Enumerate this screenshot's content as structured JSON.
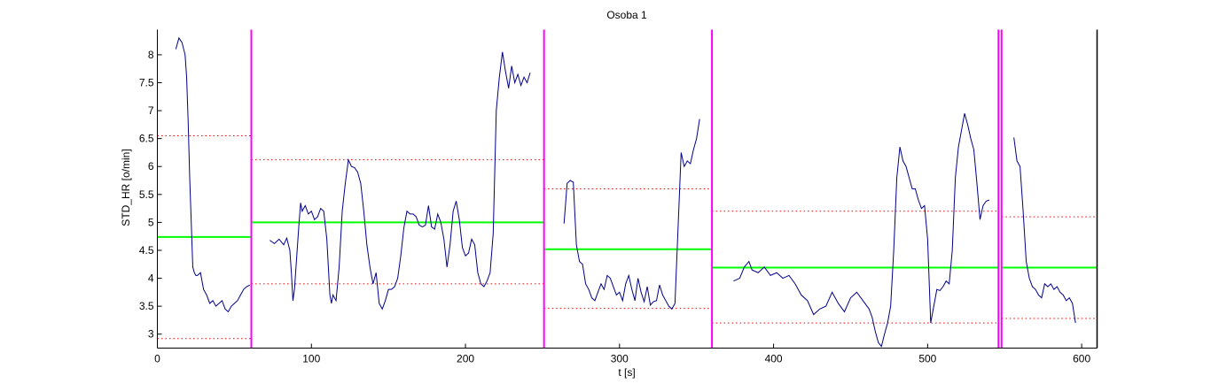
{
  "chart_data": {
    "type": "line",
    "title": "Osoba 1",
    "xlabel": "t [s]",
    "ylabel": "STD_HR [o/min]",
    "xlim": [
      0,
      610
    ],
    "ylim": [
      2.75,
      8.45
    ],
    "xticks": [
      0,
      100,
      200,
      300,
      400,
      500,
      600
    ],
    "yticks": [
      3,
      3.5,
      4,
      4.5,
      5,
      5.5,
      6,
      6.5,
      7,
      7.5,
      8
    ],
    "grid": false,
    "legend": "none",
    "colors": {
      "signal": "#00008b",
      "mean": "#00ff00",
      "bound": "#ff0000",
      "segment_boundary": "#ff00ff",
      "axes": "#000000"
    },
    "segment_boundaries": [
      61,
      251,
      360,
      546,
      548
    ],
    "segments": [
      {
        "x_start": 0,
        "x_end": 61,
        "mean": 4.74,
        "upper": 6.55,
        "lower": 2.92
      },
      {
        "x_start": 61,
        "x_end": 251,
        "mean": 5.0,
        "upper": 6.12,
        "lower": 3.9
      },
      {
        "x_start": 251,
        "x_end": 360,
        "mean": 4.52,
        "upper": 5.6,
        "lower": 3.46
      },
      {
        "x_start": 360,
        "x_end": 546,
        "mean": 4.19,
        "upper": 5.2,
        "lower": 3.2
      },
      {
        "x_start": 548,
        "x_end": 610,
        "mean": 4.19,
        "upper": 5.1,
        "lower": 3.28
      }
    ],
    "series": [
      {
        "x": [
          12,
          14,
          16,
          18,
          19,
          20,
          21,
          22,
          23,
          24,
          25,
          26,
          28,
          30,
          32,
          34,
          36,
          38,
          40,
          42,
          44,
          46,
          48,
          50,
          52,
          54,
          56,
          58,
          60
        ],
        "values": [
          8.1,
          8.3,
          8.22,
          8.0,
          7.6,
          6.8,
          5.8,
          5.0,
          4.2,
          4.1,
          4.05,
          4.05,
          4.1,
          3.8,
          3.7,
          3.55,
          3.6,
          3.5,
          3.55,
          3.6,
          3.45,
          3.4,
          3.5,
          3.55,
          3.6,
          3.7,
          3.8,
          3.85,
          3.88
        ]
      },
      {
        "x": [
          73,
          76,
          79,
          82,
          84,
          86,
          87,
          88,
          89,
          90,
          91,
          92,
          93,
          94,
          96,
          98,
          100,
          102,
          104,
          106,
          108,
          110,
          111,
          112,
          113,
          114,
          116,
          118,
          120,
          122,
          124,
          126,
          128,
          130,
          132,
          134,
          136,
          138,
          140,
          142,
          144,
          146,
          148,
          150,
          152,
          154,
          156,
          158,
          160,
          162,
          164,
          166,
          168,
          170,
          172,
          174,
          176,
          178,
          180,
          182,
          184,
          186,
          188,
          190,
          192,
          194,
          196,
          198,
          200,
          202,
          204,
          206,
          208,
          210,
          212,
          214,
          216,
          218,
          220,
          222,
          224,
          226,
          228,
          230,
          232,
          234,
          236,
          238,
          240,
          242
        ],
        "values": [
          4.68,
          4.62,
          4.7,
          4.6,
          4.72,
          4.5,
          4.1,
          3.6,
          3.8,
          4.2,
          4.6,
          5.0,
          5.35,
          5.2,
          5.3,
          5.15,
          5.2,
          5.05,
          5.1,
          5.25,
          5.2,
          4.7,
          4.2,
          3.7,
          3.55,
          3.7,
          3.6,
          4.2,
          5.2,
          5.7,
          6.12,
          6.0,
          5.98,
          5.9,
          5.7,
          5.2,
          4.6,
          4.2,
          3.9,
          4.1,
          3.55,
          3.45,
          3.6,
          3.8,
          3.8,
          3.85,
          4.0,
          4.4,
          4.9,
          5.2,
          5.15,
          5.15,
          5.1,
          4.95,
          4.92,
          4.95,
          5.3,
          4.92,
          4.88,
          5.15,
          5.0,
          4.7,
          4.2,
          4.6,
          5.2,
          5.38,
          5.05,
          4.55,
          4.4,
          4.45,
          4.7,
          4.6,
          4.1,
          3.9,
          3.85,
          3.95,
          4.1,
          4.8,
          7.0,
          7.6,
          8.05,
          7.7,
          7.4,
          7.8,
          7.5,
          7.65,
          7.45,
          7.6,
          7.5,
          7.68
        ]
      },
      {
        "x": [
          264,
          266,
          268,
          270,
          272,
          274,
          276,
          278,
          280,
          282,
          284,
          286,
          288,
          290,
          292,
          294,
          296,
          298,
          300,
          302,
          304,
          306,
          308,
          310,
          312,
          314,
          316,
          318,
          320,
          322,
          324,
          326,
          328,
          330,
          332,
          334,
          336,
          338,
          340,
          342,
          344,
          346,
          348,
          350,
          352
        ],
        "values": [
          4.98,
          5.7,
          5.75,
          5.72,
          4.6,
          4.3,
          4.25,
          3.9,
          3.8,
          3.65,
          3.6,
          3.75,
          3.9,
          3.8,
          4.05,
          4.0,
          3.85,
          3.7,
          3.75,
          3.6,
          3.9,
          4.05,
          3.8,
          3.6,
          4.0,
          3.75,
          3.58,
          3.85,
          3.52,
          3.58,
          3.6,
          3.88,
          3.7,
          3.6,
          3.5,
          3.45,
          3.55,
          4.9,
          6.25,
          6.0,
          6.1,
          6.05,
          6.3,
          6.5,
          6.85
        ]
      },
      {
        "x": [
          374,
          378,
          381,
          384,
          386,
          390,
          394,
          398,
          402,
          406,
          410,
          414,
          418,
          422,
          426,
          430,
          434,
          438,
          442,
          446,
          450,
          454,
          458,
          462,
          464,
          466,
          468,
          470,
          472,
          474,
          476,
          478,
          480,
          482,
          484,
          486,
          488,
          490,
          492,
          494,
          496,
          498,
          500,
          502,
          504,
          506,
          508,
          510,
          512,
          514,
          516,
          518,
          520,
          522,
          524,
          526,
          528,
          530,
          532,
          534,
          536,
          538,
          540
        ],
        "values": [
          3.95,
          4.0,
          4.2,
          4.3,
          4.15,
          4.1,
          4.2,
          4.05,
          4.1,
          4.0,
          4.05,
          3.9,
          3.7,
          3.6,
          3.35,
          3.45,
          3.5,
          3.75,
          3.55,
          3.4,
          3.65,
          3.75,
          3.6,
          3.45,
          3.3,
          3.05,
          2.85,
          2.78,
          3.0,
          3.2,
          3.5,
          4.5,
          5.8,
          6.35,
          6.1,
          6.0,
          5.8,
          5.6,
          5.6,
          5.4,
          5.25,
          5.3,
          4.7,
          3.2,
          3.5,
          3.8,
          3.78,
          3.85,
          3.95,
          3.9,
          4.5,
          5.8,
          6.35,
          6.65,
          6.95,
          6.75,
          6.5,
          6.3,
          5.7,
          5.05,
          5.3,
          5.38,
          5.4
        ]
      },
      {
        "x": [
          556,
          558,
          560,
          562,
          564,
          566,
          568,
          570,
          572,
          574,
          576,
          578,
          580,
          582,
          584,
          586,
          588,
          590,
          592,
          594,
          596
        ],
        "values": [
          6.52,
          6.1,
          6.0,
          5.2,
          4.3,
          4.0,
          3.85,
          3.8,
          3.7,
          3.65,
          3.9,
          3.85,
          3.9,
          3.8,
          3.85,
          3.75,
          3.7,
          3.6,
          3.65,
          3.55,
          3.2
        ]
      }
    ]
  }
}
